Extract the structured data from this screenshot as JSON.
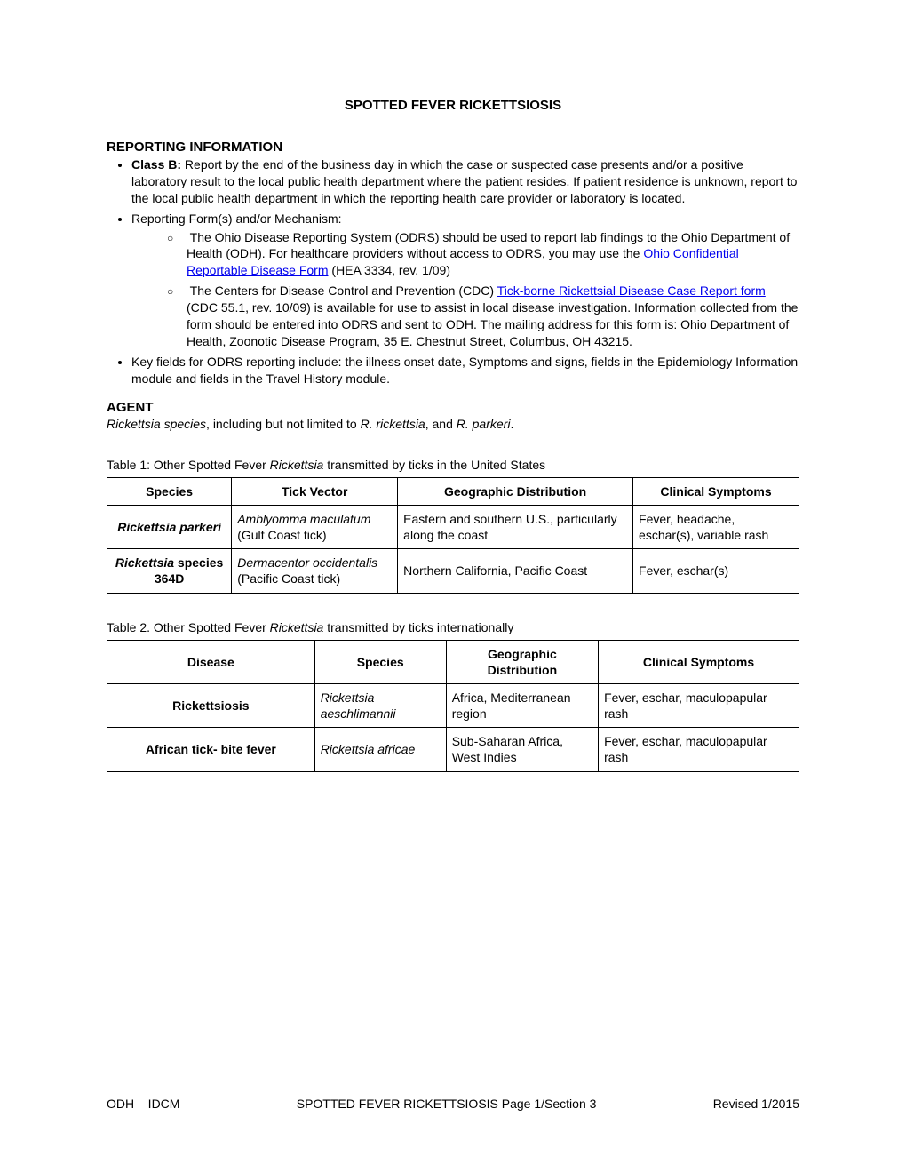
{
  "title": "SPOTTED FEVER RICKETTSIOSIS",
  "sections": {
    "reporting": {
      "heading": "REPORTING INFORMATION",
      "bullet1_label": "Class B:",
      "bullet1_text": "  Report by the end of the business day in which the case or suspected case presents and/or a positive laboratory result to the local public health department where the patient resides. If patient residence is unknown, report to the local public health department in which the reporting health care provider or laboratory is located.",
      "bullet2_text": "Reporting Form(s) and/or Mechanism:",
      "sub1_pre": "The Ohio Disease Reporting System (ODRS) should be used to report lab findings to the Ohio Department of Health (ODH).  For healthcare providers without access to ODRS",
      "sub1_comma": ", ",
      "sub1_mid": "you may use the ",
      "sub1_link": "Ohio Confidential Reportable Disease Form",
      "sub1_post": " (HEA 3334, rev. 1/09)",
      "sub2_pre": "The Centers for Disease Control and Prevention (CDC) ",
      "sub2_link": "Tick-borne Rickettsial Disease Case Report form",
      "sub2_post": " (CDC 55.1, rev. 10/09) is available for use to assist in local disease investigation. Information collected from the form should be entered into ODRS and sent to ODH.  The mailing address for this form is: Ohio Department of Health, Zoonotic Disease Program, 35 E. Chestnut Street, Columbus, OH 43215.",
      "bullet3_text": "Key fields for ODRS reporting include: the illness onset date, Symptoms and signs, fields in the Epidemiology Information module and fields in the Travel History module."
    },
    "agent": {
      "heading": "AGENT",
      "italic1": "Rickettsia species",
      "mid": ", including but not limited to ",
      "italic2": "R. rickettsia",
      "mid2": ", and ",
      "italic3": "R. parkeri",
      "end": "."
    }
  },
  "table1": {
    "caption_pre": "Table 1: Other Spotted Fever ",
    "caption_italic": "Rickettsia",
    "caption_post": " transmitted by ticks in the United States",
    "headers": [
      "Species",
      "Tick Vector",
      "Geographic Distribution",
      "Clinical Symptoms"
    ],
    "rows": [
      {
        "species": "Rickettsia parkeri",
        "vector_italic": "Amblyomma maculatum",
        "vector_rest": " (Gulf Coast tick)",
        "geo": "Eastern and southern U.S., particularly along the coast",
        "symptoms": "Fever, headache, eschar(s), variable rash"
      },
      {
        "species_italic": "Rickettsia",
        "species_rest": " species 364D",
        "vector_italic": "Dermacentor occidentalis",
        "vector_rest": " (Pacific Coast tick)",
        "geo": "Northern California, Pacific Coast",
        "symptoms": "Fever, eschar(s)"
      }
    ],
    "col_widths": [
      "18%",
      "24%",
      "34%",
      "24%"
    ]
  },
  "table2": {
    "caption_pre": "Table 2. Other Spotted Fever ",
    "caption_italic": "Rickettsia",
    "caption_post": " transmitted by ticks internationally",
    "headers": [
      "Disease",
      "Species",
      "Geographic Distribution",
      "Clinical Symptoms"
    ],
    "rows": [
      {
        "disease": "Rickettsiosis",
        "species_italic": "Rickettsia aeschlimannii",
        "geo": "Africa, Mediterranean region",
        "symptoms": "Fever, eschar, maculopapular rash"
      },
      {
        "disease": "African tick- bite fever",
        "species_italic": "Rickettsia africae",
        "geo": "Sub-Saharan Africa, West Indies",
        "symptoms": "Fever, eschar, maculopapular rash"
      }
    ],
    "col_widths": [
      "30%",
      "19%",
      "22%",
      "29%"
    ]
  },
  "footer": {
    "left": "ODH – IDCM",
    "center": "SPOTTED FEVER RICKETTSIOSIS Page 1/Section 3",
    "right": "Revised 1/2015"
  }
}
